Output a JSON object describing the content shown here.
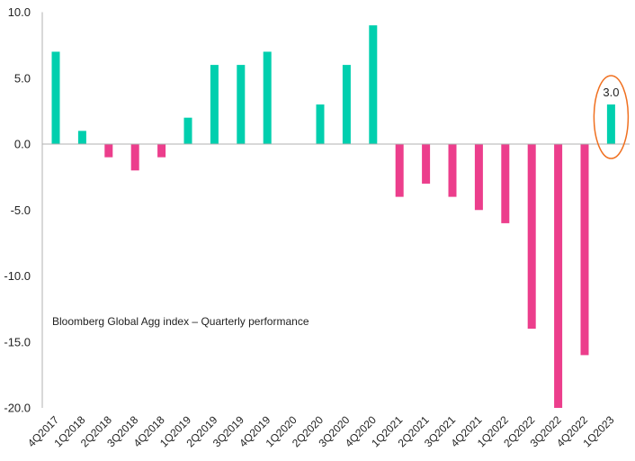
{
  "chart_data": {
    "type": "bar",
    "title": "",
    "annotation": "Bloomberg Global Agg index – Quarterly performance",
    "categories": [
      "4Q2017",
      "1Q2018",
      "2Q2018",
      "3Q2018",
      "4Q2018",
      "1Q2019",
      "2Q2019",
      "3Q2019",
      "4Q2019",
      "1Q2020",
      "2Q2020",
      "3Q2020",
      "4Q2020",
      "1Q2021",
      "2Q2021",
      "3Q2021",
      "4Q2021",
      "1Q2022",
      "2Q2022",
      "3Q2022",
      "4Q2022",
      "1Q2023"
    ],
    "values": [
      7,
      1,
      -1,
      -2,
      -1,
      2,
      6,
      6,
      7,
      0,
      3,
      6,
      9,
      -4,
      -3,
      -4,
      -5,
      -6,
      -14,
      -20,
      -16,
      3
    ],
    "ylim": [
      -20,
      10
    ],
    "yticks": [
      "10.0",
      "5.0",
      "0.0",
      "-5.0",
      "-10.0",
      "-15.0",
      "-20.0"
    ],
    "ytick_values": [
      10,
      5,
      0,
      -5,
      -10,
      -15,
      -20
    ],
    "data_labels": [
      {
        "category": "1Q2023",
        "text": "3.0",
        "highlighted": true
      }
    ],
    "grid": false,
    "legend": "none",
    "colors": {
      "positive": "#00CFAE",
      "negative": "#EC3E8C",
      "highlight": "#F07020",
      "axis": "#B0B0B0"
    }
  }
}
